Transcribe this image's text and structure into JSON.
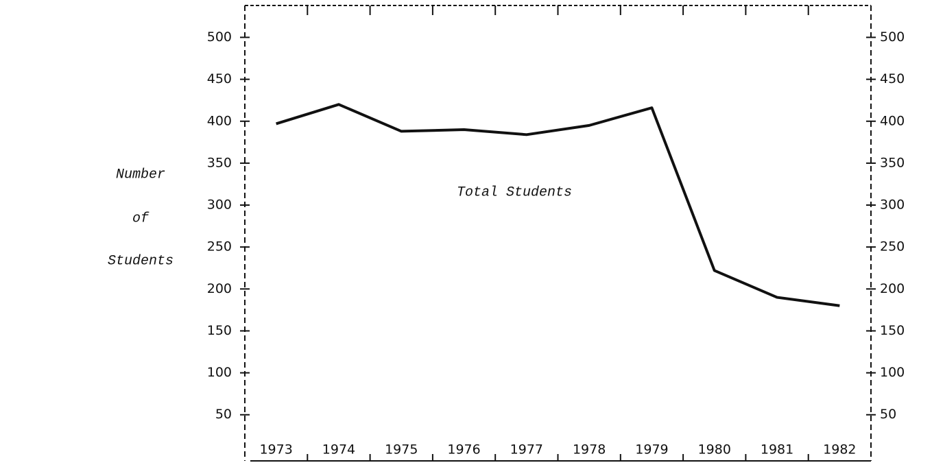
{
  "chart_data": {
    "type": "line",
    "ylabel": [
      "Number",
      "of",
      "Students"
    ],
    "annotation": "Total Students",
    "categories": [
      "1973",
      "1974",
      "1975",
      "1976",
      "1977",
      "1978",
      "1979",
      "1980",
      "1981",
      "1982"
    ],
    "series": [
      {
        "name": "Total Students",
        "color": "#111111",
        "values": [
          397,
          420,
          388,
          390,
          384,
          395,
          416,
          222,
          190,
          180
        ]
      }
    ],
    "ylim": [
      -5,
      538
    ],
    "yticks": [
      50,
      100,
      150,
      200,
      250,
      300,
      350,
      400,
      450,
      500
    ],
    "y2lim": [
      -5,
      538
    ],
    "y2ticks": [
      50,
      100,
      150,
      200,
      250,
      300,
      350,
      400,
      450,
      500
    ]
  }
}
